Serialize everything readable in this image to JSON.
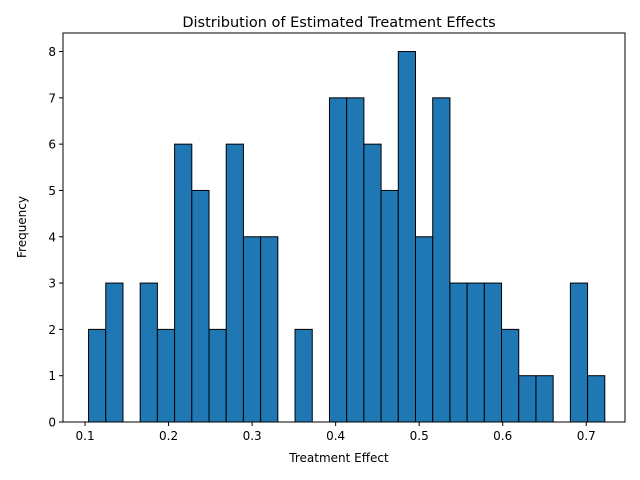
{
  "chart_data": {
    "type": "bar",
    "title": "Distribution of Estimated Treatment Effects",
    "xlabel": "Treatment Effect",
    "ylabel": "Frequency",
    "xlim": [
      0.0736,
      0.7464
    ],
    "ylim": [
      0,
      8.4
    ],
    "x_ticks": [
      0.1,
      0.2,
      0.3,
      0.4,
      0.5,
      0.6,
      0.7
    ],
    "x_tick_labels": [
      "0.1",
      "0.2",
      "0.3",
      "0.4",
      "0.5",
      "0.6",
      "0.7"
    ],
    "y_ticks": [
      0,
      1,
      2,
      3,
      4,
      5,
      6,
      7,
      8
    ],
    "y_tick_labels": [
      "0",
      "1",
      "2",
      "3",
      "4",
      "5",
      "6",
      "7",
      "8"
    ],
    "bin_start": 0.1042,
    "bin_width": 0.0206,
    "values": [
      2,
      3,
      0,
      3,
      2,
      6,
      5,
      2,
      6,
      4,
      4,
      0,
      2,
      0,
      7,
      7,
      6,
      5,
      8,
      4,
      7,
      3,
      3,
      3,
      2,
      1,
      1,
      0,
      3,
      1
    ],
    "bar_color": "#1f77b4",
    "edge_color": "#000000",
    "grid": false
  }
}
